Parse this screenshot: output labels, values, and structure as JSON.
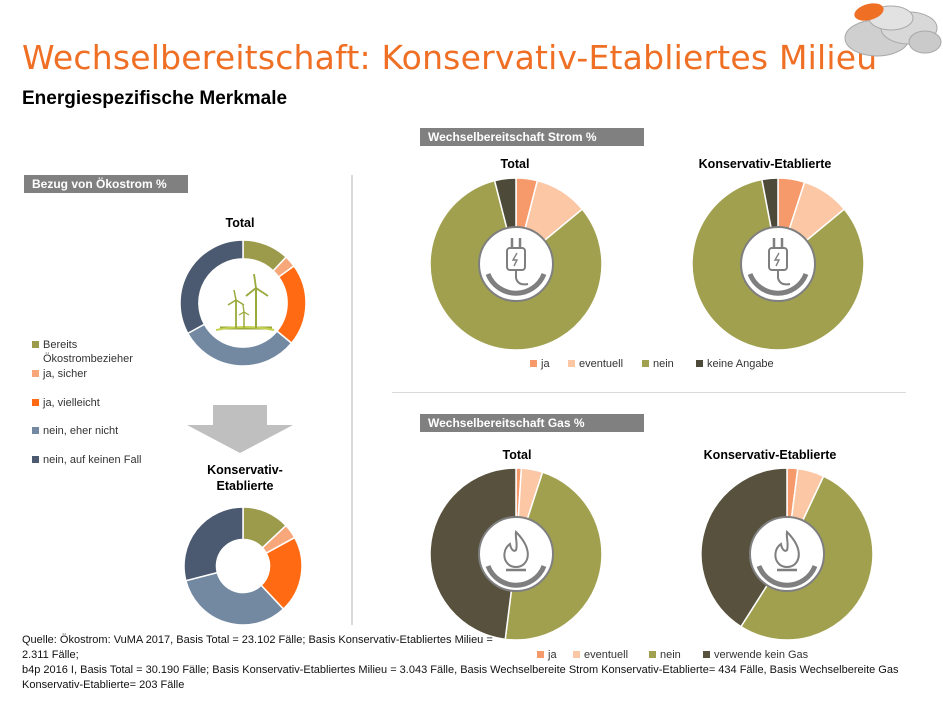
{
  "page": {
    "title": "Wechselbereitschaft: Konservativ-Etabliertes Milieu",
    "subtitle": "Energiespezifische Merkmale"
  },
  "colors": {
    "accent": "#ef6f24",
    "bereits": "#9c9b4b",
    "ja_sicher": "#f7a77a",
    "ja_vielleicht": "#ff6a13",
    "nein_eher_nicht": "#7389a2",
    "nein_keinen_fall": "#4b5a70",
    "ja": "#f79a6b",
    "eventuell": "#fbc7a5",
    "nein": "#a1a04f",
    "keine_angabe": "#4e4a3a",
    "kein_gas": "#57513d"
  },
  "oekostrom": {
    "section_label": "Bezug von Ökostrom %",
    "legend": [
      {
        "label": "Bereits Ökostrombezieher",
        "color": "#9c9b4b"
      },
      {
        "label": "ja, sicher",
        "color": "#f7a77a"
      },
      {
        "label": "ja, vielleicht",
        "color": "#ff6a13"
      },
      {
        "label": "nein, eher nicht",
        "color": "#7389a2"
      },
      {
        "label": "nein, auf keinen Fall",
        "color": "#4b5a70"
      }
    ],
    "icon": "wind-turbine-icon",
    "arrow": "arrow-down-icon"
  },
  "strom": {
    "section_label": "Wechselbereitschaft Strom %",
    "icon": "power-plug-icon",
    "legend": [
      {
        "label": "ja",
        "color": "#f79a6b"
      },
      {
        "label": "eventuell",
        "color": "#fbc7a5"
      },
      {
        "label": "nein",
        "color": "#a1a04f"
      },
      {
        "label": "keine Angabe",
        "color": "#4e4a3a"
      }
    ]
  },
  "gas": {
    "section_label": "Wechselbereitschaft Gas %",
    "icon": "gas-flame-icon",
    "legend": [
      {
        "label": "ja",
        "color": "#f79a6b"
      },
      {
        "label": "eventuell",
        "color": "#fbc7a5"
      },
      {
        "label": "nein",
        "color": "#a1a04f"
      },
      {
        "label": "verwende kein Gas",
        "color": "#57513d"
      }
    ]
  },
  "chart_data": [
    {
      "id": "oeko_total",
      "type": "pie",
      "title": "Total",
      "categories": [
        "Bereits Ökostrombezieher",
        "ja, sicher",
        "ja, vielleicht",
        "nein, eher nicht",
        "nein, auf keinen Fall"
      ],
      "values": [
        12,
        3,
        21,
        31,
        33
      ]
    },
    {
      "id": "oeko_ke",
      "type": "pie",
      "title": "Konservativ-Etablierte",
      "categories": [
        "Bereits Ökostrombezieher",
        "ja, sicher",
        "ja, vielleicht",
        "nein, eher nicht",
        "nein, auf keinen Fall"
      ],
      "values": [
        13,
        4,
        21,
        33,
        29
      ]
    },
    {
      "id": "strom_total",
      "type": "pie",
      "title": "Total",
      "categories": [
        "ja",
        "eventuell",
        "nein",
        "keine Angabe"
      ],
      "values": [
        4,
        10,
        82,
        4
      ]
    },
    {
      "id": "strom_ke",
      "type": "pie",
      "title": "Konservativ-Etablierte",
      "categories": [
        "ja",
        "eventuell",
        "nein",
        "keine Angabe"
      ],
      "values": [
        5,
        9,
        83,
        3
      ]
    },
    {
      "id": "gas_total",
      "type": "pie",
      "title": "Total",
      "categories": [
        "ja",
        "eventuell",
        "nein",
        "verwende kein Gas"
      ],
      "values": [
        1,
        4,
        47,
        48
      ]
    },
    {
      "id": "gas_ke",
      "type": "pie",
      "title": "Konservativ-Etablierte",
      "categories": [
        "ja",
        "eventuell",
        "nein",
        "verwende kein Gas"
      ],
      "values": [
        2,
        5,
        52,
        41
      ]
    }
  ],
  "chart_titles": {
    "oeko_total": "Total",
    "oeko_ke": "Konservativ-\nEtablierte",
    "strom_total": "Total",
    "strom_ke": "Konservativ-Etablierte",
    "gas_total": "Total",
    "gas_ke": "Konservativ-Etablierte"
  },
  "source": {
    "line1": "Quelle: Ökostrom: VuMA 2017, Basis Total = 23.102 Fälle; Basis Konservativ-Etabliertes Milieu = 2.311 Fälle;",
    "line2": "b4p 2016 I, Basis Total = 30.190 Fälle; Basis Konservativ-Etabliertes Milieu = 3.043 Fälle, Basis Wechselbereite Strom Konservativ-Etablierte= 434 Fälle, Basis Wechselbereite Gas Konservativ-Etablierte= 203 Fälle"
  }
}
